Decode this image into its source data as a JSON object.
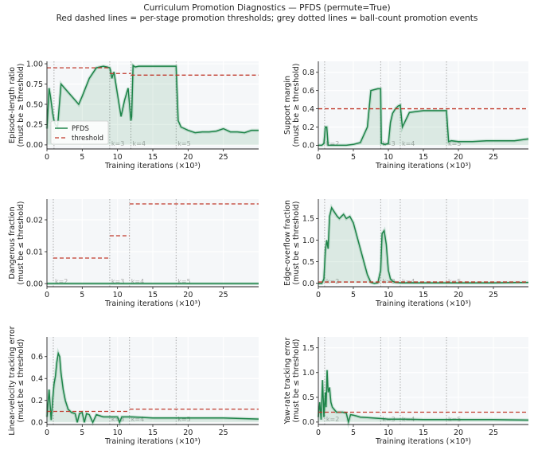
{
  "figure": {
    "title": "Curriculum Promotion Diagnostics — PFDS (permute=True)",
    "subtitle": "Red dashed lines = per-stage promotion thresholds; grey dotted lines = ball-count promotion events"
  },
  "colors": {
    "series": "#1e8449",
    "threshold": "#c0392b",
    "event": "#a0a0a0",
    "panel_bg": "#f5f7f9",
    "grid": "#ffffff"
  },
  "chart_data": [
    {
      "type": "line",
      "ylabel": [
        "Episode-length ratio",
        "(must be ≥ threshold)"
      ],
      "xlabel": "Training iterations (×10³)",
      "xlim": [
        0,
        30
      ],
      "ylim": [
        -0.05,
        1.03
      ],
      "xticks": [
        "0",
        "5",
        "10",
        "15",
        "20",
        "25"
      ],
      "xtick_values": [
        0,
        5,
        10,
        15,
        20,
        25
      ],
      "yticks": [
        "0.00",
        "0.25",
        "0.50",
        "0.75",
        "1.00"
      ],
      "ytick_values": [
        0,
        0.25,
        0.5,
        0.75,
        1.0
      ],
      "events": [
        {
          "x": 1.0,
          "label": ""
        },
        {
          "x": 8.9,
          "label": "k=3"
        },
        {
          "x": 11.9,
          "label": "k=4"
        },
        {
          "x": 18.3,
          "label": "k=5"
        }
      ],
      "thresholds": [
        {
          "x0": 0,
          "x1": 8.9,
          "y": 0.95
        },
        {
          "x0": 8.9,
          "x1": 11.9,
          "y": 0.88
        },
        {
          "x0": 11.9,
          "x1": 30,
          "y": 0.86
        }
      ],
      "series": [
        {
          "name": "PFDS",
          "x": [
            0,
            0.3,
            0.5,
            0.8,
            1.0,
            1.2,
            1.5,
            2.0,
            3.0,
            4.0,
            4.5,
            5.0,
            6.0,
            7.0,
            7.5,
            8.0,
            8.5,
            8.9,
            9.0,
            9.2,
            9.5,
            10.0,
            10.5,
            11.0,
            11.5,
            11.9,
            12.0,
            12.2,
            12.5,
            13.0,
            14.0,
            15.0,
            16.0,
            17.0,
            18.0,
            18.3,
            18.6,
            19.0,
            20.0,
            21.0,
            22.0,
            23.0,
            24.0,
            25.0,
            26.0,
            27.0,
            28.0,
            29.0,
            30.0
          ],
          "y": [
            0.2,
            0.7,
            0.6,
            0.4,
            0.3,
            0.25,
            0.22,
            0.75,
            0.65,
            0.55,
            0.5,
            0.6,
            0.82,
            0.95,
            0.96,
            0.97,
            0.96,
            0.95,
            0.92,
            0.82,
            0.9,
            0.62,
            0.35,
            0.55,
            0.7,
            0.3,
            0.35,
            0.98,
            0.96,
            0.97,
            0.97,
            0.97,
            0.97,
            0.97,
            0.97,
            0.97,
            0.3,
            0.22,
            0.18,
            0.15,
            0.16,
            0.16,
            0.17,
            0.2,
            0.16,
            0.16,
            0.15,
            0.18,
            0.18
          ]
        }
      ],
      "legend": {
        "placement": "lower-left",
        "entries": [
          "PFDS",
          "threshold"
        ]
      }
    },
    {
      "type": "line",
      "ylabel": [
        "Support margin",
        "(must be ≥ threshold)"
      ],
      "xlabel": "Training iterations (×10³)",
      "xlim": [
        0,
        30
      ],
      "ylim": [
        -0.04,
        0.92
      ],
      "xticks": [
        "0",
        "5",
        "10",
        "15",
        "20",
        "25"
      ],
      "xtick_values": [
        0,
        5,
        10,
        15,
        20,
        25
      ],
      "yticks": [
        "0.0",
        "0.2",
        "0.4",
        "0.6",
        "0.8"
      ],
      "ytick_values": [
        0,
        0.2,
        0.4,
        0.6,
        0.8
      ],
      "events": [
        {
          "x": 0.9,
          "label": "k=2"
        },
        {
          "x": 8.9,
          "label": "k=3"
        },
        {
          "x": 11.7,
          "label": "k=4"
        },
        {
          "x": 18.3,
          "label": "k=5"
        }
      ],
      "thresholds": [
        {
          "x0": 0,
          "x1": 30,
          "y": 0.4
        }
      ],
      "series": [
        {
          "name": "PFDS",
          "x": [
            0,
            0.5,
            0.8,
            1.0,
            1.2,
            1.4,
            2.0,
            3.0,
            4.0,
            5.0,
            6.0,
            7.0,
            7.5,
            8.0,
            8.5,
            8.9,
            9.0,
            9.5,
            10.0,
            10.3,
            10.6,
            11.0,
            11.4,
            11.7,
            12.0,
            13.0,
            14.0,
            15.0,
            16.0,
            17.0,
            18.0,
            18.3,
            18.6,
            19.0,
            20.0,
            22.0,
            24.0,
            26.0,
            28.0,
            30.0
          ],
          "y": [
            0.0,
            0.0,
            0.02,
            0.2,
            0.2,
            0.0,
            0.0,
            0.0,
            0.0,
            0.01,
            0.03,
            0.2,
            0.6,
            0.61,
            0.62,
            0.62,
            0.02,
            0.01,
            0.02,
            0.25,
            0.35,
            0.4,
            0.43,
            0.44,
            0.2,
            0.36,
            0.37,
            0.38,
            0.38,
            0.38,
            0.38,
            0.38,
            0.04,
            0.05,
            0.04,
            0.04,
            0.05,
            0.05,
            0.05,
            0.07
          ]
        }
      ]
    },
    {
      "type": "line",
      "ylabel": [
        "Dangerous fraction",
        "(must be ≤ threshold)"
      ],
      "xlabel": "Training iterations (×10³)",
      "xlim": [
        0,
        30
      ],
      "ylim": [
        -0.001,
        0.0265
      ],
      "xticks": [
        "0",
        "5",
        "10",
        "15",
        "20",
        "25"
      ],
      "xtick_values": [
        0,
        5,
        10,
        15,
        20,
        25
      ],
      "yticks": [
        "0.00",
        "0.01",
        "0.02"
      ],
      "ytick_values": [
        0,
        0.01,
        0.02
      ],
      "events": [
        {
          "x": 0.9,
          "label": "k=2"
        },
        {
          "x": 8.9,
          "label": "k=3"
        },
        {
          "x": 11.7,
          "label": "k=4"
        },
        {
          "x": 18.3,
          "label": "k=5"
        }
      ],
      "thresholds": [
        {
          "x0": 0.9,
          "x1": 8.9,
          "y": 0.008
        },
        {
          "x0": 8.9,
          "x1": 11.7,
          "y": 0.015
        },
        {
          "x0": 11.7,
          "x1": 30,
          "y": 0.025
        }
      ],
      "series": [
        {
          "name": "PFDS",
          "x": [
            0,
            30
          ],
          "y": [
            0,
            0
          ]
        }
      ]
    },
    {
      "type": "line",
      "ylabel": [
        "Edge-overflow fraction",
        "(must be ≤ threshold)"
      ],
      "xlabel": "Training iterations (×10³)",
      "xlim": [
        0,
        30
      ],
      "ylim": [
        -0.08,
        1.95
      ],
      "xticks": [
        "0",
        "5",
        "10",
        "15",
        "20",
        "25"
      ],
      "xtick_values": [
        0,
        5,
        10,
        15,
        20,
        25
      ],
      "yticks": [
        "0.0",
        "0.5",
        "1.0",
        "1.5"
      ],
      "ytick_values": [
        0,
        0.5,
        1.0,
        1.5
      ],
      "events": [
        {
          "x": 0.9,
          "label": "k=2"
        },
        {
          "x": 8.9,
          "label": "k=3"
        },
        {
          "x": 11.7,
          "label": "k=4"
        },
        {
          "x": 18.3,
          "label": "k=5"
        }
      ],
      "thresholds": [
        {
          "x0": 0,
          "x1": 30,
          "y": 0.03
        }
      ],
      "series": [
        {
          "name": "PFDS",
          "x": [
            0,
            0.5,
            0.8,
            1.0,
            1.2,
            1.4,
            1.6,
            1.9,
            2.3,
            2.7,
            3.0,
            3.3,
            3.6,
            4.0,
            4.5,
            5.0,
            5.5,
            6.0,
            6.5,
            7.0,
            7.5,
            8.0,
            8.5,
            8.9,
            9.1,
            9.4,
            9.7,
            10.0,
            10.3,
            10.6,
            11.0,
            12.0,
            15.0,
            20.0,
            25.0,
            30.0
          ],
          "y": [
            0.0,
            0.0,
            0.1,
            0.75,
            1.0,
            0.8,
            1.55,
            1.75,
            1.65,
            1.55,
            1.5,
            1.55,
            1.6,
            1.5,
            1.55,
            1.4,
            1.1,
            0.8,
            0.5,
            0.2,
            0.02,
            0.0,
            0.01,
            0.3,
            1.15,
            1.22,
            0.9,
            0.3,
            0.1,
            0.05,
            0.02,
            0.01,
            0.01,
            0.01,
            0.01,
            0.02
          ]
        }
      ]
    },
    {
      "type": "line",
      "ylabel": [
        "Linear-velocity tracking error",
        "(must be ≤ threshold)"
      ],
      "xlabel": "Training iterations (×10³)",
      "xlim": [
        0,
        30
      ],
      "ylim": [
        -0.02,
        0.78
      ],
      "xticks": [
        "0",
        "5",
        "10",
        "15",
        "20",
        "25"
      ],
      "xtick_values": [
        0,
        5,
        10,
        15,
        20,
        25
      ],
      "yticks": [
        "0.0",
        "0.2",
        "0.4",
        "0.6"
      ],
      "ytick_values": [
        0,
        0.2,
        0.4,
        0.6
      ],
      "events": [
        {
          "x": 0.9,
          "label": ""
        },
        {
          "x": 8.9,
          "label": "k=3"
        },
        {
          "x": 11.7,
          "label": "k=4"
        },
        {
          "x": 18.3,
          "label": "k=5"
        }
      ],
      "thresholds": [
        {
          "x0": 0,
          "x1": 11.7,
          "y": 0.1
        },
        {
          "x0": 11.7,
          "x1": 30,
          "y": 0.12
        }
      ],
      "series": [
        {
          "name": "PFDS",
          "x": [
            0,
            0.3,
            0.6,
            0.8,
            1.0,
            1.2,
            1.4,
            1.6,
            1.8,
            2.0,
            2.3,
            2.6,
            3.0,
            3.5,
            4.0,
            4.3,
            4.6,
            5.0,
            5.3,
            5.6,
            6.0,
            6.5,
            7.0,
            7.5,
            8.0,
            9.0,
            10.0,
            10.3,
            10.6,
            11.0,
            12.0,
            15.0,
            18.0,
            20.0,
            25.0,
            30.0
          ],
          "y": [
            0.05,
            0.3,
            0.02,
            0.2,
            0.35,
            0.42,
            0.55,
            0.63,
            0.6,
            0.45,
            0.3,
            0.2,
            0.12,
            0.09,
            0.08,
            0.0,
            0.08,
            0.09,
            0.0,
            0.08,
            0.07,
            0.0,
            0.07,
            0.06,
            0.05,
            0.05,
            0.05,
            0.0,
            0.05,
            0.05,
            0.05,
            0.04,
            0.04,
            0.04,
            0.04,
            0.03
          ]
        }
      ]
    },
    {
      "type": "line",
      "ylabel": [
        "Yaw-rate tracking error",
        "(must be ≤ threshold)"
      ],
      "xlabel": "Training iterations (×10³)",
      "xlim": [
        0,
        30
      ],
      "ylim": [
        -0.05,
        1.72
      ],
      "xticks": [
        "0",
        "5",
        "10",
        "15",
        "20",
        "25"
      ],
      "xtick_values": [
        0,
        5,
        10,
        15,
        20,
        25
      ],
      "yticks": [
        "0.0",
        "0.5",
        "1.0",
        "1.5"
      ],
      "ytick_values": [
        0,
        0.5,
        1.0,
        1.5
      ],
      "events": [
        {
          "x": 0.9,
          "label": "k=2"
        },
        {
          "x": 8.9,
          "label": "k=3"
        },
        {
          "x": 11.7,
          "label": "k=4"
        },
        {
          "x": 18.3,
          "label": "k=5"
        }
      ],
      "thresholds": [
        {
          "x0": 0,
          "x1": 30,
          "y": 0.2
        }
      ],
      "series": [
        {
          "name": "PFDS",
          "x": [
            0,
            0.2,
            0.4,
            0.6,
            0.8,
            1.0,
            1.1,
            1.25,
            1.4,
            1.6,
            1.8,
            2.0,
            2.3,
            2.6,
            3.0,
            3.5,
            4.0,
            4.3,
            4.6,
            5.0,
            5.5,
            6.0,
            7.0,
            8.0,
            9.0,
            10.0,
            12.0,
            15.0,
            20.0,
            25.0,
            30.0
          ],
          "y": [
            0.1,
            0.4,
            0.05,
            0.85,
            0.1,
            0.6,
            0.3,
            1.05,
            0.6,
            0.7,
            0.4,
            0.3,
            0.25,
            0.2,
            0.2,
            0.2,
            0.18,
            0.0,
            0.15,
            0.14,
            0.12,
            0.1,
            0.09,
            0.08,
            0.07,
            0.06,
            0.06,
            0.05,
            0.05,
            0.05,
            0.04
          ]
        }
      ]
    }
  ]
}
